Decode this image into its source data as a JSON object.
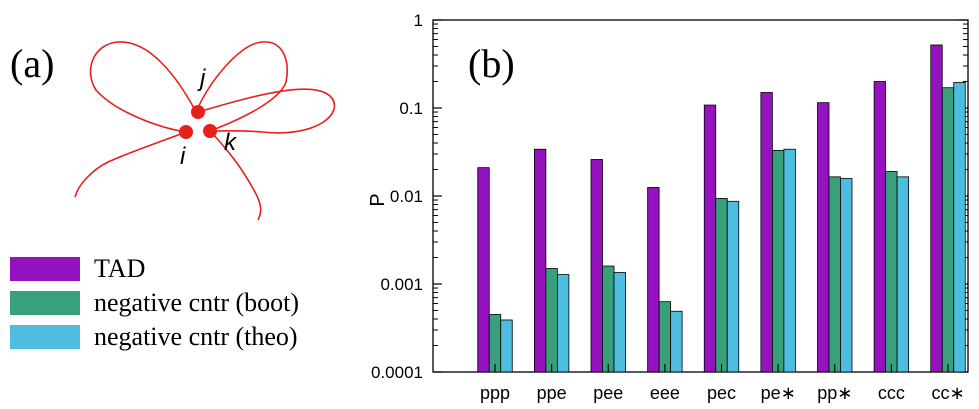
{
  "panel_a": {
    "label": "(a)",
    "nodes": [
      {
        "name": "j",
        "label": "j"
      },
      {
        "name": "i",
        "label": "i"
      },
      {
        "name": "k",
        "label": "k"
      }
    ],
    "loop_color": "#e8201c"
  },
  "panel_b": {
    "label": "(b)"
  },
  "chart_data": {
    "type": "bar",
    "ylabel": "P",
    "yscale": "log",
    "ylim": [
      0.0001,
      1
    ],
    "ytick_labels": [
      "0.0001",
      "0.001",
      "0.01",
      "0.1",
      "1"
    ],
    "ytick_values": [
      0.0001,
      0.001,
      0.01,
      0.1,
      1
    ],
    "categories": [
      "ppp",
      "ppe",
      "pee",
      "eee",
      "pec",
      "pe∗",
      "pp∗",
      "ccc",
      "cc∗"
    ],
    "series": [
      {
        "name": "TAD",
        "color": "#9413bf",
        "values": [
          0.021,
          0.034,
          0.026,
          0.0125,
          0.108,
          0.15,
          0.115,
          0.2,
          0.52
        ]
      },
      {
        "name": "negative cntr (boot)",
        "color": "#3aa07b",
        "values": [
          0.00045,
          0.0015,
          0.0016,
          0.00063,
          0.0094,
          0.033,
          0.0165,
          0.019,
          0.17
        ]
      },
      {
        "name": "negative cntr (theo)",
        "color": "#4ebde0",
        "values": [
          0.00039,
          0.00128,
          0.00135,
          0.00049,
          0.0087,
          0.034,
          0.0158,
          0.0165,
          0.195
        ]
      }
    ],
    "legend_position": "left",
    "grid": false
  }
}
